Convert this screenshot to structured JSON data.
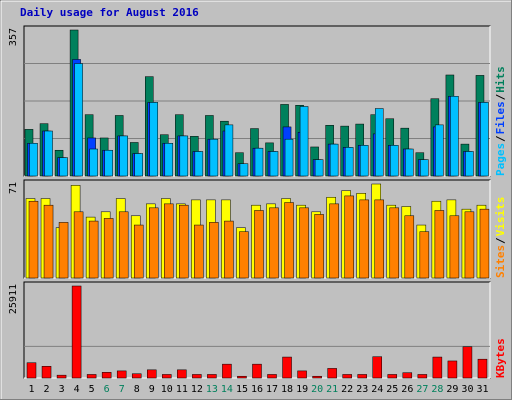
{
  "chart_data": {
    "title": "Daily usage for August 2016",
    "type": "bar",
    "days": [
      "1",
      "2",
      "3",
      "4",
      "5",
      "6",
      "7",
      "8",
      "9",
      "10",
      "11",
      "12",
      "13",
      "14",
      "15",
      "16",
      "17",
      "18",
      "19",
      "20",
      "21",
      "22",
      "23",
      "24",
      "25",
      "26",
      "27",
      "28",
      "29",
      "30",
      "31"
    ],
    "weekend_days": [
      "6",
      "7",
      "13",
      "14",
      "20",
      "21",
      "27",
      "28"
    ],
    "colors": {
      "title": "#0000c0",
      "hits": "#00805c",
      "files": "#0040ff",
      "pages": "#00c0ff",
      "visits": "#ffff00",
      "sites": "#ff8000",
      "kbytes": "#ff0000",
      "weekend_label": "#00805c",
      "weekday_label": "#000000"
    },
    "panels": [
      {
        "name": "hits-files-pages",
        "max_label": "357",
        "ylim": [
          0,
          357
        ],
        "legend": [
          {
            "text": "Pages",
            "color": "#00c0ff"
          },
          {
            "text": "/",
            "color": "#000000"
          },
          {
            "text": "Files",
            "color": "#0040ff"
          },
          {
            "text": "/",
            "color": "#000000"
          },
          {
            "text": "Hits",
            "color": "#00805c"
          }
        ],
        "series": [
          {
            "name": "Hits",
            "color": "#00805c",
            "values": [
              114,
              128,
              63,
              357,
              150,
              93,
              148,
              82,
              243,
              101,
              150,
              97,
              148,
              134,
              57,
              116,
              81,
              175,
              173,
              71,
              124,
              122,
              127,
              150,
              140,
              117,
              57,
              189,
              247,
              78,
              246
            ]
          },
          {
            "name": "Files",
            "color": "#0040ff",
            "values": [
              80,
              110,
              45,
              285,
              93,
              63,
              98,
              55,
              180,
              80,
              98,
              60,
              90,
              110,
              30,
              68,
              60,
              120,
              107,
              40,
              78,
              70,
              75,
              103,
              75,
              66,
              40,
              120,
              195,
              60,
              180
            ]
          },
          {
            "name": "Pages",
            "color": "#00c0ff",
            "values": [
              80,
              110,
              45,
              275,
              66,
              63,
              98,
              55,
              180,
              80,
              98,
              60,
              90,
              125,
              30,
              68,
              60,
              90,
              170,
              40,
              78,
              70,
              75,
              165,
              75,
              66,
              40,
              125,
              195,
              60,
              180
            ]
          }
        ]
      },
      {
        "name": "visits-sites",
        "max_label": "71",
        "ylim": [
          0,
          71
        ],
        "legend": [
          {
            "text": "Sites",
            "color": "#ff8000"
          },
          {
            "text": "/",
            "color": "#000000"
          },
          {
            "text": "Visits",
            "color": "#ffff00"
          }
        ],
        "series": [
          {
            "name": "Visits",
            "color": "#ffff00",
            "values": [
              60,
              60,
              38,
              70,
              46,
              50,
              60,
              47,
              56,
              60,
              56,
              59,
              59,
              59,
              38,
              55,
              56,
              60,
              55,
              50,
              61,
              66,
              64,
              71,
              55,
              54,
              40,
              58,
              59,
              52,
              55
            ]
          },
          {
            "name": "Sites",
            "color": "#ff8000",
            "values": [
              58,
              55,
              42,
              50,
              43,
              45,
              50,
              40,
              53,
              56,
              55,
              40,
              42,
              43,
              35,
              51,
              53,
              57,
              53,
              48,
              56,
              62,
              59,
              59,
              53,
              47,
              35,
              51,
              47,
              50,
              52
            ]
          }
        ]
      },
      {
        "name": "kbytes",
        "max_label": "25911",
        "ylim": [
          0,
          25911
        ],
        "legend": [
          {
            "text": "KBytes",
            "color": "#ff0000"
          }
        ],
        "series": [
          {
            "name": "KBytes",
            "color": "#ff0000",
            "values": [
              4300,
              3300,
              800,
              25911,
              1000,
              1600,
              2000,
              1200,
              2300,
              1000,
              2300,
              1000,
              1000,
              3900,
              500,
              3900,
              1000,
              5900,
              2000,
              500,
              2700,
              1000,
              1000,
              6000,
              1000,
              1500,
              1000,
              5900,
              4800,
              8800,
              5300
            ]
          }
        ]
      }
    ]
  }
}
